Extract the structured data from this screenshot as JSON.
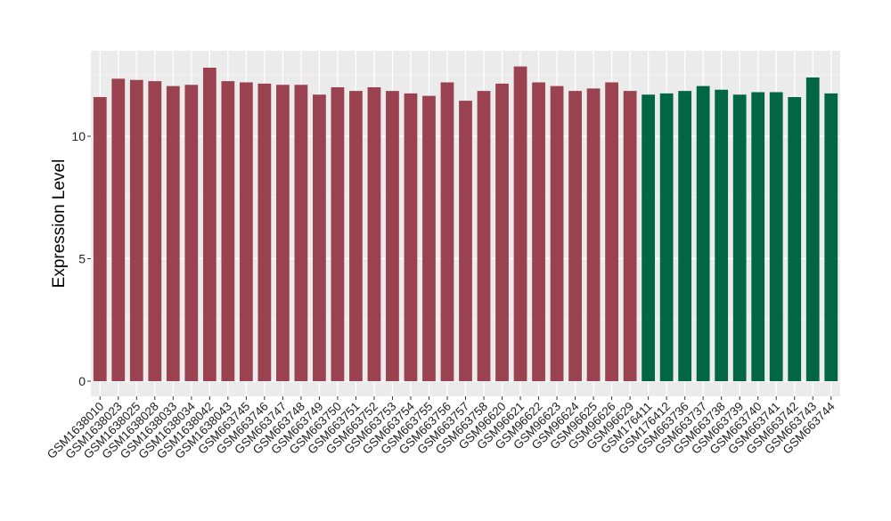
{
  "chart_data": {
    "type": "bar",
    "title": "",
    "xlabel": "",
    "ylabel": "Expression Level",
    "ylim": [
      0,
      12.9
    ],
    "y_ticks": [
      "0",
      "5",
      "10"
    ],
    "grid": true,
    "legend": "none",
    "background_color": "#ebebeb",
    "grid_color": "#ffffff",
    "colors": {
      "group1": "#9b4251",
      "group2": "#006644"
    },
    "categories": [
      "GSM1638010",
      "GSM1638023",
      "GSM1638025",
      "GSM1638028",
      "GSM1638033",
      "GSM1638034",
      "GSM1638042",
      "GSM1638043",
      "GSM663745",
      "GSM663746",
      "GSM663747",
      "GSM663748",
      "GSM663749",
      "GSM663750",
      "GSM663751",
      "GSM663752",
      "GSM663753",
      "GSM663754",
      "GSM663755",
      "GSM663756",
      "GSM663757",
      "GSM663758",
      "GSM96620",
      "GSM96621",
      "GSM96622",
      "GSM96623",
      "GSM96624",
      "GSM96625",
      "GSM96626",
      "GSM96629",
      "GSM176411",
      "GSM176412",
      "GSM663736",
      "GSM663737",
      "GSM663738",
      "GSM663739",
      "GSM663740",
      "GSM663741",
      "GSM663742",
      "GSM663743",
      "GSM663744"
    ],
    "values": [
      11.6,
      12.35,
      12.3,
      12.25,
      12.05,
      12.1,
      12.8,
      12.25,
      12.2,
      12.15,
      12.1,
      12.1,
      11.7,
      12.0,
      11.85,
      12.0,
      11.85,
      11.75,
      11.65,
      12.2,
      11.45,
      11.85,
      12.15,
      12.85,
      12.2,
      12.05,
      11.85,
      11.95,
      12.2,
      11.85,
      11.7,
      11.75,
      11.85,
      12.05,
      11.9,
      11.7,
      11.8,
      11.8,
      11.6,
      12.4,
      11.75
    ],
    "groups": [
      1,
      1,
      1,
      1,
      1,
      1,
      1,
      1,
      1,
      1,
      1,
      1,
      1,
      1,
      1,
      1,
      1,
      1,
      1,
      1,
      1,
      1,
      1,
      1,
      1,
      1,
      1,
      1,
      1,
      1,
      2,
      2,
      2,
      2,
      2,
      2,
      2,
      2,
      2,
      2,
      2
    ]
  }
}
